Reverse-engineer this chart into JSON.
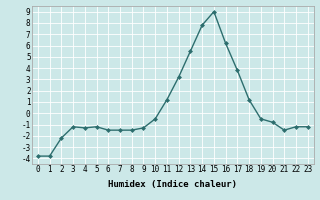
{
  "x": [
    0,
    1,
    2,
    3,
    4,
    5,
    6,
    7,
    8,
    9,
    10,
    11,
    12,
    13,
    14,
    15,
    16,
    17,
    18,
    19,
    20,
    21,
    22,
    23
  ],
  "y": [
    -3.8,
    -3.8,
    -2.2,
    -1.2,
    -1.3,
    -1.2,
    -1.5,
    -1.5,
    -1.5,
    -1.3,
    -0.5,
    1.2,
    3.2,
    5.5,
    7.8,
    9.0,
    6.2,
    3.8,
    1.2,
    -0.5,
    -0.8,
    -1.5,
    -1.2,
    -1.2
  ],
  "line_color": "#2d6e6e",
  "marker": "D",
  "marker_size": 2.0,
  "bg_color": "#cce8e8",
  "grid_color": "#ffffff",
  "xlabel": "Humidex (Indice chaleur)",
  "xlabel_fontsize": 6.5,
  "tick_fontsize": 5.5,
  "ylim": [
    -4.5,
    9.5
  ],
  "xlim": [
    -0.5,
    23.5
  ],
  "yticks": [
    -4,
    -3,
    -2,
    -1,
    0,
    1,
    2,
    3,
    4,
    5,
    6,
    7,
    8,
    9
  ],
  "xticks": [
    0,
    1,
    2,
    3,
    4,
    5,
    6,
    7,
    8,
    9,
    10,
    11,
    12,
    13,
    14,
    15,
    16,
    17,
    18,
    19,
    20,
    21,
    22,
    23
  ],
  "line_width": 1.0,
  "spine_color": "#aaaaaa"
}
